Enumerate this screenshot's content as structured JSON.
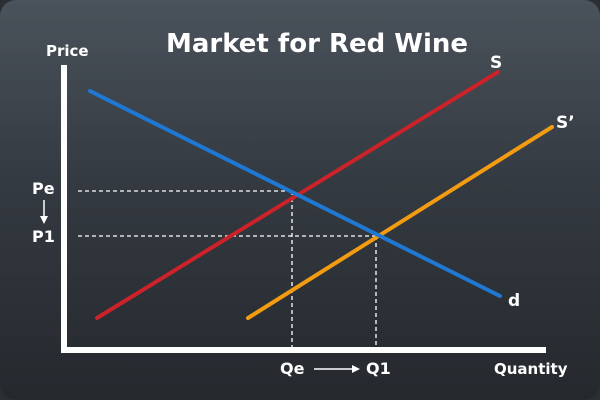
{
  "title": "Market for Red Wine",
  "axes": {
    "y_label": "Price",
    "x_label": "Quantity"
  },
  "price_levels": [
    {
      "id": "pe",
      "label": "Pe"
    },
    {
      "id": "p1",
      "label": "P1"
    }
  ],
  "quantity_levels": [
    {
      "id": "qe",
      "label": "Qe"
    },
    {
      "id": "q1",
      "label": "Q1"
    }
  ],
  "curves": [
    {
      "id": "supply",
      "label": "S",
      "color": "#cc2229"
    },
    {
      "id": "supply_new",
      "label": "S’",
      "color": "#f39c12"
    },
    {
      "id": "demand",
      "label": "d",
      "color": "#1f78d1"
    }
  ],
  "colors": {
    "axis": "#ffffff",
    "guide": "#ffffff"
  }
}
